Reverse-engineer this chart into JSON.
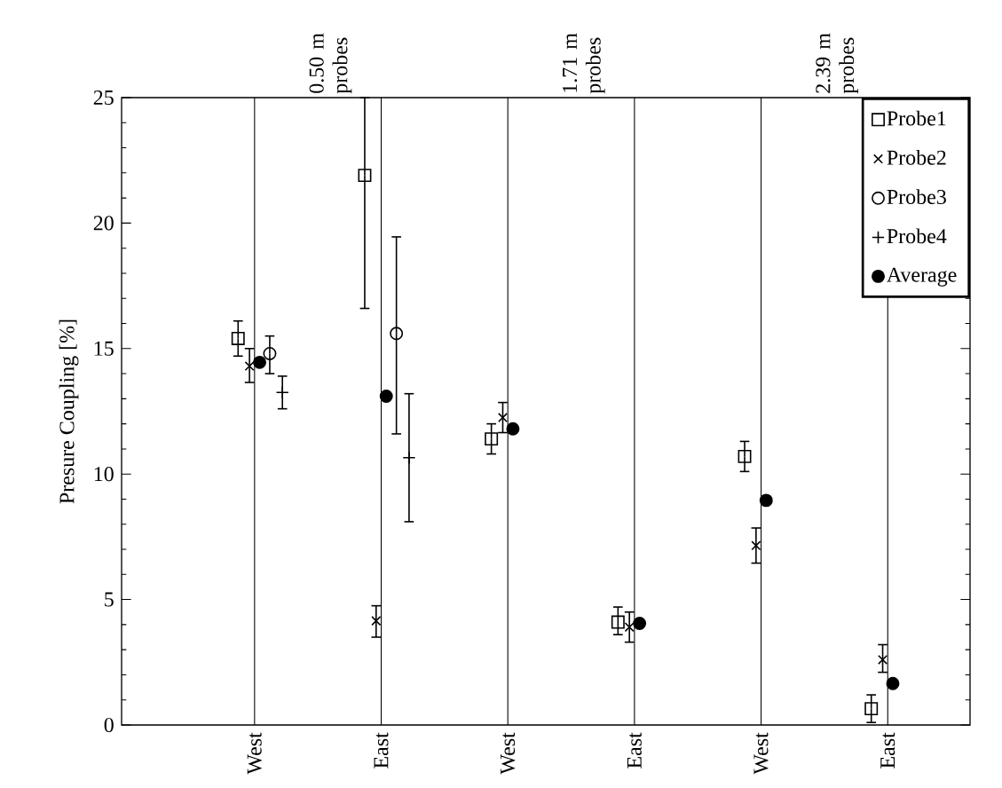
{
  "chart_data": {
    "type": "scatter",
    "ylabel": "Presure Coupling [%]",
    "annotations": [
      "0.50 m probes",
      "1.71 m probes",
      "2.39 m probes"
    ],
    "categories": [
      "West",
      "East",
      "West",
      "East",
      "West",
      "East"
    ],
    "ylim": [
      0,
      25
    ],
    "yticks": [
      0,
      5,
      10,
      15,
      20,
      25
    ],
    "grid": "x",
    "legend": "top right",
    "series": [
      {
        "name": "Probe1",
        "color": "#000000",
        "marker": "square",
        "values": [
          15.4,
          21.9,
          11.4,
          4.1,
          10.7,
          0.65
        ],
        "errors": [
          [
            14.7,
            16.1
          ],
          [
            16.6,
            25
          ],
          [
            10.8,
            12.0
          ],
          [
            3.6,
            4.7
          ],
          [
            10.1,
            11.3
          ],
          [
            0.1,
            1.2
          ]
        ]
      },
      {
        "name": "Probe2",
        "color": "#000000",
        "marker": "cross",
        "values": [
          14.3,
          4.15,
          12.25,
          3.9,
          7.15,
          2.6
        ],
        "errors": [
          [
            13.65,
            15.0
          ],
          [
            3.5,
            4.75
          ],
          [
            11.65,
            12.85
          ],
          [
            3.3,
            4.5
          ],
          [
            6.45,
            7.85
          ],
          [
            2.1,
            3.2
          ]
        ]
      },
      {
        "name": "Probe3",
        "color": "#000000",
        "marker": "circle",
        "values": [
          14.8,
          15.6,
          null,
          null,
          null,
          null
        ],
        "errors": [
          [
            14.0,
            15.5
          ],
          [
            11.6,
            19.45
          ],
          null,
          null,
          null,
          null
        ]
      },
      {
        "name": "Probe4",
        "color": "#000000",
        "marker": "plus",
        "values": [
          13.25,
          10.65,
          null,
          null,
          null,
          null
        ],
        "errors": [
          [
            12.6,
            13.9
          ],
          [
            8.1,
            13.2
          ],
          null,
          null,
          null,
          null
        ]
      },
      {
        "name": "Average",
        "color": "#000000",
        "marker": "dot",
        "values": [
          14.45,
          13.1,
          11.8,
          4.05,
          8.95,
          1.65
        ]
      }
    ]
  }
}
